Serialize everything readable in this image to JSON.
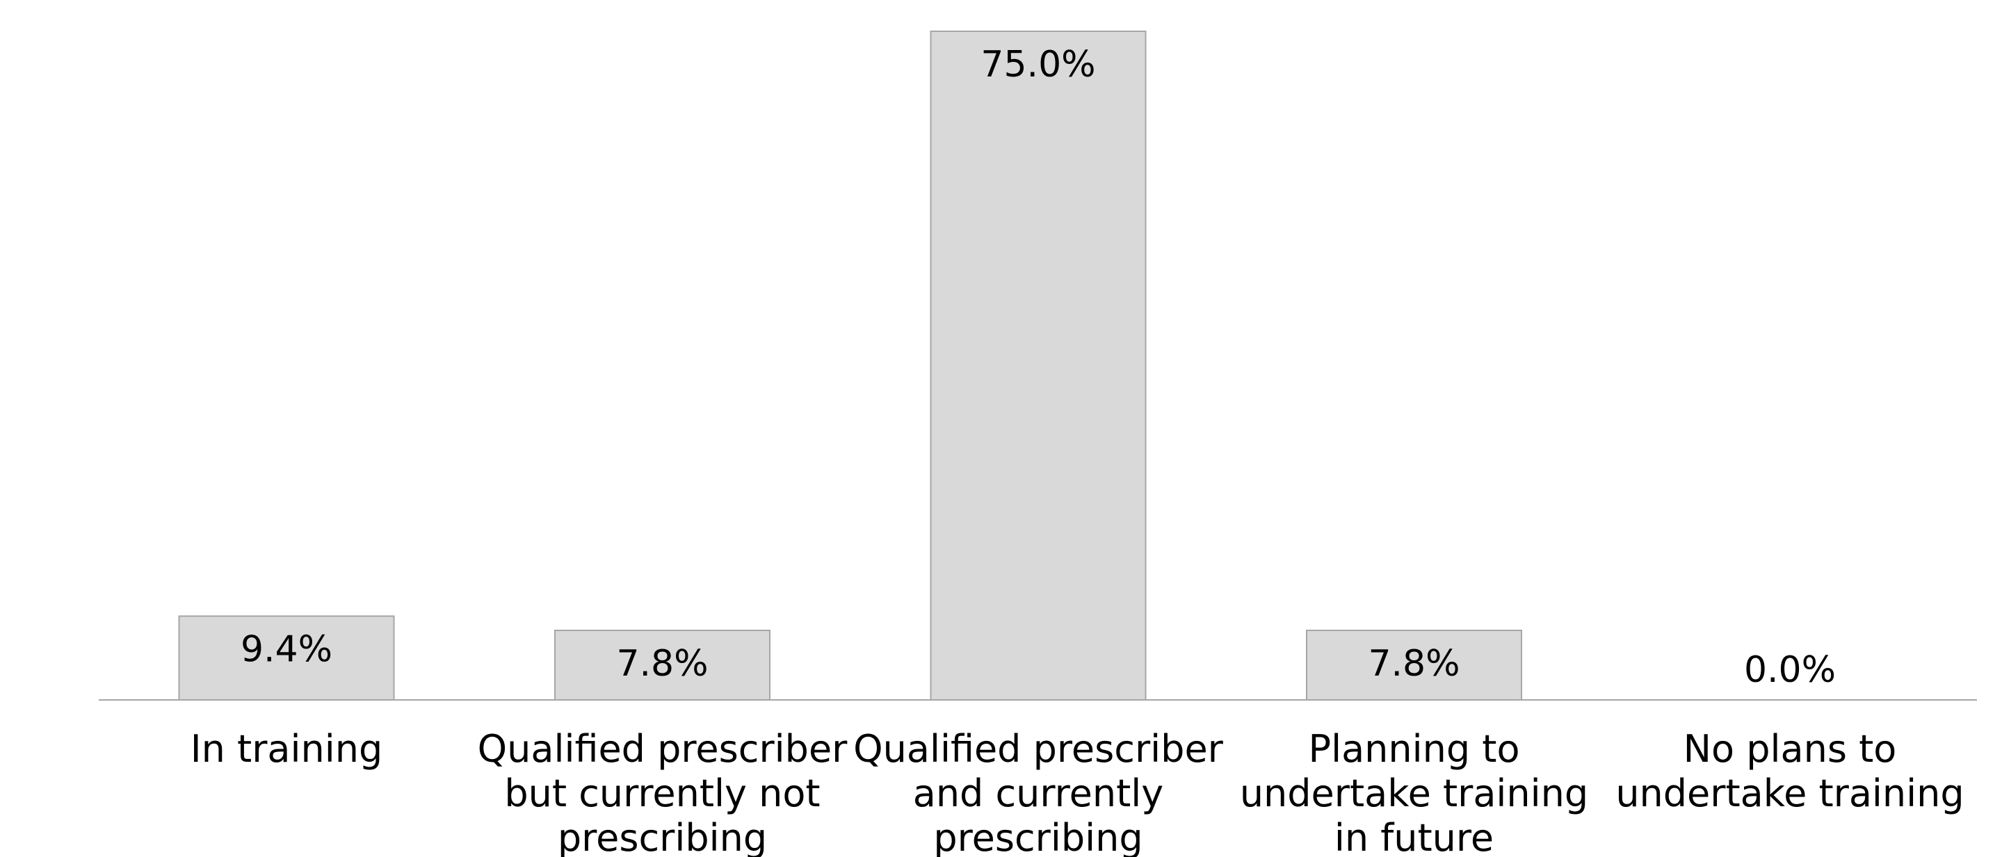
{
  "chart_data": {
    "type": "bar",
    "categories": [
      "In training",
      "Qualified prescriber but currently not prescribing",
      "Qualified prescriber and currently prescribing",
      "Planning to undertake training in future",
      "No plans to undertake training"
    ],
    "category_lines": [
      [
        "In training"
      ],
      [
        "Qualified prescriber",
        "but currently not",
        "prescribing"
      ],
      [
        "Qualified prescriber",
        "and currently",
        "prescribing"
      ],
      [
        "Planning to",
        "undertake training",
        "in future"
      ],
      [
        "No plans to",
        "undertake training"
      ]
    ],
    "values": [
      9.4,
      7.8,
      75.0,
      7.8,
      0.0
    ],
    "data_labels": [
      "9.4%",
      "7.8%",
      "75.0%",
      "7.8%",
      "0.0%"
    ],
    "title": "",
    "xlabel": "",
    "ylabel": "",
    "ylim": [
      0,
      75
    ],
    "grid": false,
    "legend": "none",
    "colors": {
      "bar_fill": "#d9d9d9",
      "bar_stroke": "#a6a6a6",
      "baseline": "#a6a6a6",
      "text": "#000000"
    }
  }
}
